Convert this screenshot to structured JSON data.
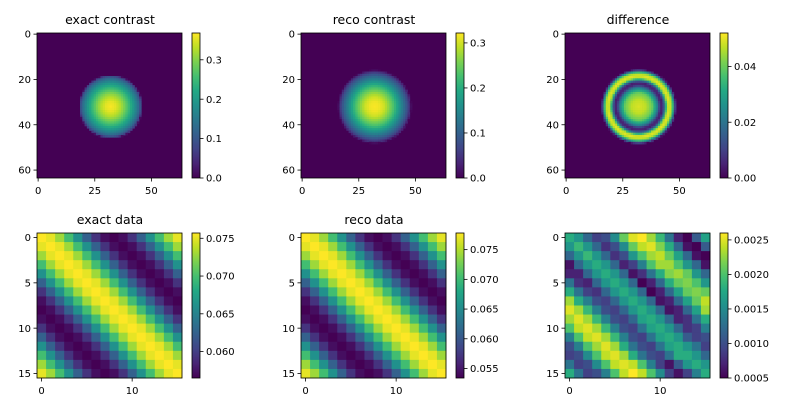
{
  "colormap": "viridis",
  "chart_data": [
    {
      "type": "heatmap",
      "title": "exact contrast",
      "shape": [
        64,
        64
      ],
      "x_extent": [
        -0.5,
        63.5
      ],
      "y_extent": [
        63.5,
        -0.5
      ],
      "xticks": [
        0,
        25,
        50
      ],
      "yticks": [
        0,
        20,
        40,
        60
      ],
      "clim": [
        0.0,
        0.368
      ],
      "colorbar_ticks": [
        "0.0",
        "0.1",
        "0.2",
        "0.3"
      ],
      "center": [
        32,
        32
      ],
      "radial_profile": {
        "r": [
          0,
          2,
          4,
          6,
          8,
          10,
          11,
          12,
          13,
          13.5,
          14
        ],
        "value": [
          0.365,
          0.355,
          0.33,
          0.295,
          0.25,
          0.2,
          0.17,
          0.14,
          0.1,
          0.07,
          0.0
        ]
      }
    },
    {
      "type": "heatmap",
      "title": "reco contrast",
      "shape": [
        64,
        64
      ],
      "x_extent": [
        -0.5,
        63.5
      ],
      "y_extent": [
        63.5,
        -0.5
      ],
      "xticks": [
        0,
        25,
        50
      ],
      "yticks": [
        0,
        20,
        40,
        60
      ],
      "clim": [
        0.0,
        0.322
      ],
      "colorbar_ticks": [
        "0.0",
        "0.1",
        "0.2",
        "0.3"
      ],
      "center": [
        32,
        32
      ],
      "radial_profile": {
        "r": [
          0,
          2,
          4,
          6,
          8,
          10,
          12,
          14,
          15,
          15.7,
          16.2
        ],
        "value": [
          0.32,
          0.315,
          0.3,
          0.27,
          0.235,
          0.19,
          0.14,
          0.09,
          0.06,
          0.03,
          0.0
        ]
      }
    },
    {
      "type": "heatmap",
      "title": "difference",
      "shape": [
        64,
        64
      ],
      "x_extent": [
        -0.5,
        63.5
      ],
      "y_extent": [
        63.5,
        -0.5
      ],
      "xticks": [
        0,
        25,
        50
      ],
      "yticks": [
        0,
        20,
        40,
        60
      ],
      "clim": [
        0.0,
        0.052
      ],
      "colorbar_ticks": [
        "0.00",
        "0.02",
        "0.04"
      ],
      "center": [
        32,
        32
      ],
      "radial_profile": {
        "r": [
          0,
          3,
          6,
          8,
          9.5,
          10.5,
          11.5,
          12.5,
          13.5,
          14.5,
          15.3,
          16,
          16.5
        ],
        "value": [
          0.049,
          0.047,
          0.04,
          0.025,
          0.006,
          0.004,
          0.02,
          0.045,
          0.05,
          0.045,
          0.03,
          0.01,
          0.0
        ]
      }
    },
    {
      "type": "heatmap",
      "title": "exact data",
      "shape": [
        16,
        16
      ],
      "x_extent": [
        -0.5,
        15.5
      ],
      "y_extent": [
        15.5,
        -0.5
      ],
      "xticks": [
        0,
        10
      ],
      "yticks": [
        0,
        5,
        10,
        15
      ],
      "clim": [
        0.0565,
        0.0757
      ],
      "colorbar_ticks": [
        "0.060",
        "0.065",
        "0.070",
        "0.075"
      ],
      "circulant": true,
      "first_row": [
        0.0757,
        0.075,
        0.0729,
        0.0698,
        0.0661,
        0.0624,
        0.0593,
        0.0572,
        0.0565,
        0.0572,
        0.0593,
        0.0624,
        0.0661,
        0.0698,
        0.0729,
        0.075
      ]
    },
    {
      "type": "heatmap",
      "title": "reco data",
      "shape": [
        16,
        16
      ],
      "x_extent": [
        -0.5,
        15.5
      ],
      "y_extent": [
        15.5,
        -0.5
      ],
      "xticks": [
        0,
        10
      ],
      "yticks": [
        0,
        5,
        10,
        15
      ],
      "clim": [
        0.0534,
        0.0778
      ],
      "colorbar_ticks": [
        "0.055",
        "0.060",
        "0.065",
        "0.070",
        "0.075"
      ],
      "circulant": true,
      "first_row": [
        0.0778,
        0.0769,
        0.0742,
        0.0703,
        0.0656,
        0.0609,
        0.057,
        0.0543,
        0.0534,
        0.0543,
        0.057,
        0.0609,
        0.0656,
        0.0703,
        0.0742,
        0.0769
      ]
    },
    {
      "type": "heatmap",
      "title": "",
      "shape": [
        16,
        16
      ],
      "x_extent": [
        -0.5,
        15.5
      ],
      "y_extent": [
        15.5,
        -0.5
      ],
      "xticks": [
        0,
        10
      ],
      "yticks": [
        0,
        5,
        10,
        15
      ],
      "clim": [
        0.0005,
        0.0026
      ],
      "colorbar_ticks": [
        "0.0005",
        "0.0010",
        "0.0015",
        "0.0020",
        "0.0025"
      ],
      "matrix_scale": 0.001,
      "matrix": [
        [
          1.8,
          1.6,
          1.2,
          0.9,
          1.0,
          1.5,
          2.1,
          2.5,
          2.6,
          2.3,
          1.9,
          1.3,
          0.7,
          0.5,
          1.1,
          1.7
        ],
        [
          1.6,
          1.9,
          1.6,
          1.2,
          0.8,
          1.0,
          1.5,
          2.1,
          2.4,
          2.5,
          2.2,
          1.8,
          1.2,
          0.6,
          0.5,
          1.1
        ],
        [
          1.2,
          1.6,
          1.9,
          1.6,
          1.2,
          0.8,
          1.0,
          1.6,
          2.0,
          2.3,
          2.4,
          2.1,
          1.7,
          1.2,
          0.6,
          0.5
        ],
        [
          0.6,
          1.2,
          1.6,
          1.8,
          1.6,
          1.2,
          0.7,
          0.9,
          1.4,
          2.0,
          2.3,
          2.3,
          2.0,
          1.6,
          1.2,
          0.6
        ],
        [
          0.7,
          0.7,
          1.2,
          1.6,
          1.8,
          1.6,
          1.2,
          0.6,
          0.8,
          1.3,
          1.8,
          2.2,
          2.3,
          2.1,
          1.6,
          1.2
        ],
        [
          1.3,
          0.8,
          0.7,
          1.2,
          1.6,
          1.8,
          1.6,
          1.2,
          0.5,
          0.7,
          1.2,
          1.8,
          2.1,
          2.2,
          2.0,
          1.6
        ],
        [
          1.8,
          1.3,
          0.9,
          0.8,
          1.2,
          1.6,
          1.8,
          1.6,
          1.2,
          0.5,
          0.7,
          1.2,
          1.7,
          2.1,
          2.2,
          2.1
        ],
        [
          2.3,
          1.8,
          1.4,
          1.0,
          0.9,
          1.2,
          1.6,
          1.8,
          1.6,
          1.2,
          0.6,
          0.7,
          1.2,
          1.7,
          2.1,
          2.4
        ],
        [
          2.5,
          2.3,
          1.9,
          1.4,
          1.0,
          0.9,
          1.2,
          1.6,
          1.8,
          1.6,
          1.2,
          0.6,
          0.7,
          1.2,
          1.7,
          2.3
        ],
        [
          2.3,
          2.5,
          2.3,
          1.9,
          1.4,
          1.0,
          0.9,
          1.2,
          1.7,
          1.8,
          1.6,
          1.2,
          0.7,
          0.8,
          1.3,
          1.8
        ],
        [
          2.0,
          2.4,
          2.5,
          2.3,
          1.9,
          1.4,
          1.0,
          0.9,
          1.3,
          1.7,
          1.8,
          1.6,
          1.2,
          0.8,
          0.9,
          1.4
        ],
        [
          1.4,
          2.0,
          2.4,
          2.5,
          2.3,
          1.9,
          1.4,
          1.0,
          0.9,
          1.3,
          1.7,
          1.8,
          1.6,
          1.1,
          0.9,
          1.0
        ],
        [
          1.0,
          1.4,
          2.0,
          2.3,
          2.5,
          2.3,
          1.8,
          1.3,
          1.0,
          0.9,
          1.3,
          1.7,
          1.8,
          1.6,
          1.3,
          0.9
        ],
        [
          0.9,
          1.0,
          1.5,
          2.0,
          2.4,
          2.5,
          2.3,
          1.8,
          1.3,
          1.0,
          0.9,
          1.3,
          1.8,
          1.8,
          1.6,
          1.2
        ],
        [
          1.3,
          0.9,
          1.0,
          1.5,
          2.0,
          2.4,
          2.5,
          2.4,
          2.0,
          1.4,
          0.9,
          0.6,
          1.1,
          1.6,
          1.8,
          1.6
        ],
        [
          1.8,
          1.3,
          0.9,
          1.0,
          1.4,
          2.0,
          2.4,
          2.6,
          2.4,
          2.0,
          1.5,
          0.9,
          0.6,
          0.9,
          1.4,
          1.8
        ]
      ]
    }
  ]
}
